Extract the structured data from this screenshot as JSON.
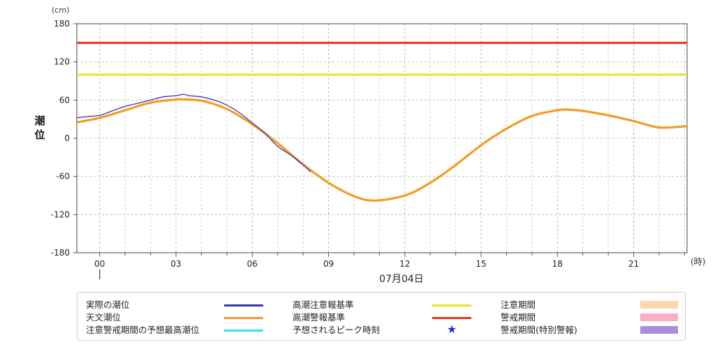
{
  "chart_data": {
    "type": "line",
    "y_unit": "(cm)",
    "x_unit": "(時)",
    "ylabel": "潮位",
    "date_label": "07月04日",
    "ylim": [
      -180,
      180
    ],
    "xlim": [
      -0.9,
      23.1
    ],
    "y_ticks": [
      -180,
      -120,
      -60,
      0,
      60,
      120,
      180
    ],
    "x_ticks": [
      {
        "hour": 0,
        "label": "00"
      },
      {
        "hour": 3,
        "label": "03"
      },
      {
        "hour": 6,
        "label": "06"
      },
      {
        "hour": 9,
        "label": "09"
      },
      {
        "hour": 12,
        "label": "12"
      },
      {
        "hour": 15,
        "label": "15"
      },
      {
        "hour": 18,
        "label": "18"
      },
      {
        "hour": 21,
        "label": "21"
      }
    ],
    "grid": true,
    "series": [
      {
        "name": "実際の潮位",
        "color": "#3b33b5",
        "x": [
          -0.9,
          -0.5,
          0,
          0.5,
          1,
          1.5,
          2,
          2.5,
          3,
          3.3,
          3.5,
          4,
          4.5,
          5,
          5.5,
          6,
          6.5,
          7,
          7.5,
          8,
          8.3
        ],
        "values": [
          32,
          34,
          36,
          43,
          50,
          55,
          60,
          65,
          67,
          69,
          67,
          65,
          60,
          52,
          40,
          24,
          8,
          -13,
          -26,
          -42,
          -53
        ]
      },
      {
        "name": "天文潮位",
        "color": "#f39c1f",
        "x": [
          -0.9,
          0,
          1,
          2,
          3,
          3.2,
          4,
          5,
          6,
          7,
          8,
          9,
          10,
          10.8,
          12,
          13,
          14,
          15,
          16,
          17,
          18,
          18.4,
          19,
          20,
          21,
          22,
          23.1
        ],
        "values": [
          25,
          32,
          44,
          56,
          61,
          61,
          59,
          46,
          22,
          -8,
          -41,
          -70,
          -91,
          -98,
          -90,
          -70,
          -42,
          -11,
          15,
          35,
          44,
          45,
          43,
          36,
          27,
          17,
          19
        ]
      },
      {
        "name": "高潮注意報基準",
        "color": "#e7e330",
        "constant": 100
      },
      {
        "name": "高潮警報基準",
        "color": "#e8341c",
        "constant": 150
      }
    ]
  },
  "legend": [
    {
      "label": "実際の潮位",
      "kind": "line",
      "color": "#3b33b5",
      "col": 0,
      "row": 0
    },
    {
      "label": "天文潮位",
      "kind": "line",
      "color": "#f39c1f",
      "col": 0,
      "row": 1
    },
    {
      "label": "注意警戒期間の予想最高潮位",
      "kind": "line",
      "color": "#35e3f3",
      "col": 0,
      "row": 2
    },
    {
      "label": "高潮注意報基準",
      "kind": "line",
      "color": "#e7e330",
      "col": 1,
      "row": 0
    },
    {
      "label": "高潮警報基準",
      "kind": "line",
      "color": "#e8341c",
      "col": 1,
      "row": 1
    },
    {
      "label": "予想されるピーク時刻",
      "kind": "star",
      "color": "#1f2bd8",
      "col": 1,
      "row": 2
    },
    {
      "label": "注意期間",
      "kind": "box",
      "color": "#fbd7ab",
      "col": 2,
      "row": 0
    },
    {
      "label": "警戒期間",
      "kind": "box",
      "color": "#f9adc7",
      "col": 2,
      "row": 1
    },
    {
      "label": "警戒期間(特別警報)",
      "kind": "box",
      "color": "#a98fda",
      "col": 2,
      "row": 2
    }
  ]
}
